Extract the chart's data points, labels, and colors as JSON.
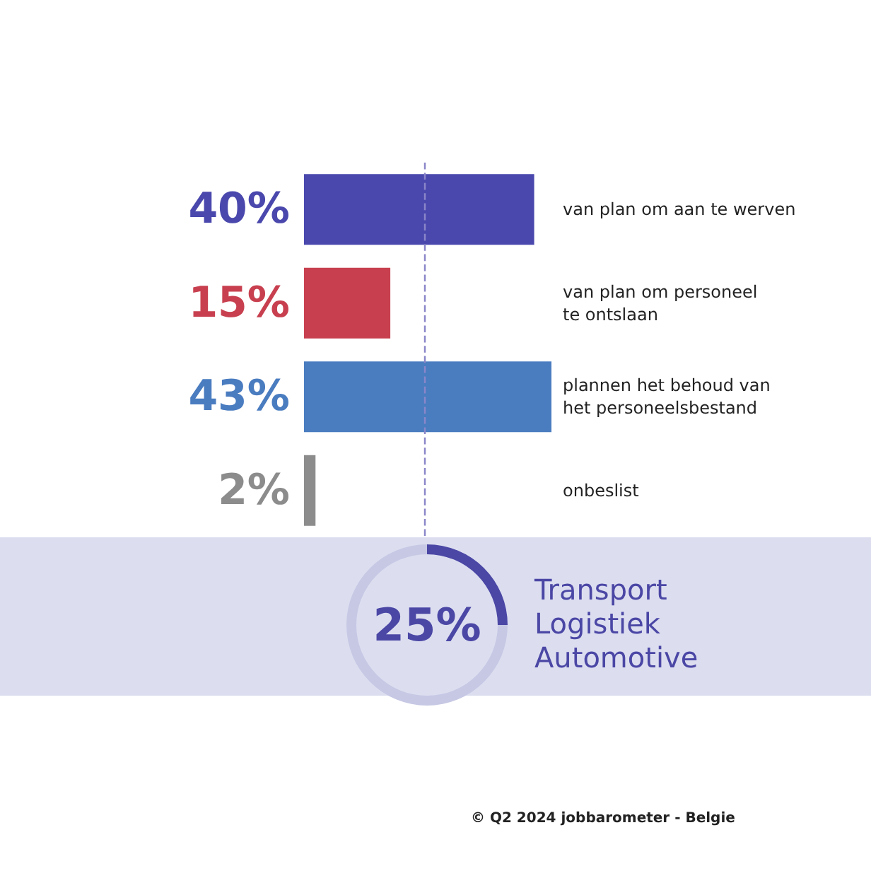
{
  "chart_data": [
    {
      "type": "bar",
      "orientation": "horizontal",
      "relative": false,
      "categories": [
        "van plan om aan te werven",
        "van plan om personeel\nte ontslaan",
        "plannen het behoud van\nhet personeelsbestand",
        "onbeslist"
      ],
      "values": [
        40,
        15,
        43,
        2
      ],
      "colors": [
        "#4a48ad",
        "#c8404f",
        "#4a7cc0",
        "#8c8c8c"
      ],
      "value_labels": [
        "40%",
        "15%",
        "43%",
        "2%"
      ],
      "ref_lines": [
        {
          "axis": "x",
          "value": 21,
          "color": "#8a86c8",
          "line_style": "dashed"
        }
      ]
    },
    {
      "type": "donut",
      "title": "Transport\nLogistiek\nAutomotive",
      "categories": [
        null,
        null
      ],
      "values": [
        25,
        75
      ],
      "colors": [
        "#4b47a5",
        "#c6c8e4"
      ],
      "value_labels": [
        "25%",
        null
      ],
      "annotations": [
        "© Q2 2024 jobbarometer - Belgie"
      ]
    }
  ]
}
